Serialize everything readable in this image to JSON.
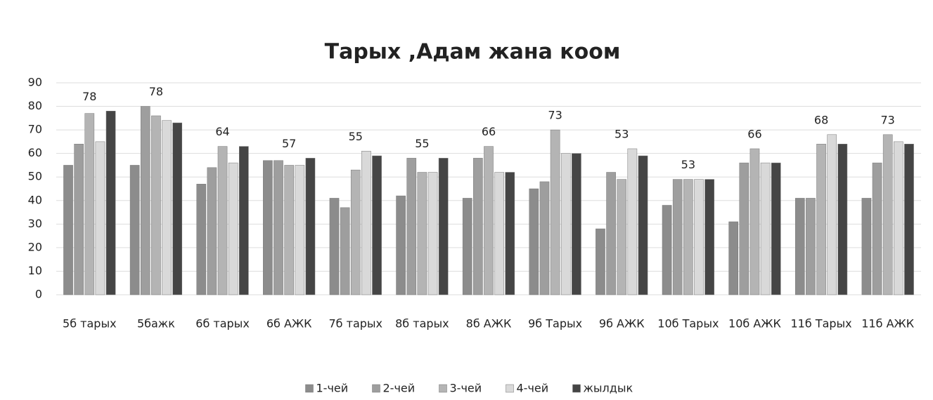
{
  "chart_data": {
    "type": "bar",
    "title": "Тарых ,Адам жана коом",
    "categories": [
      "5б тарых",
      "5бажк",
      "6б тарых",
      "6б АЖК",
      "7б тарых",
      "8б тарых",
      "8б АЖК",
      "9б Тарых",
      "9б АЖК",
      "10б Тарых",
      "10б  АЖК",
      "11б Тарых",
      "11б  АЖК"
    ],
    "series": [
      {
        "name": "1-чей",
        "color": "#8c8c8c",
        "values": [
          55,
          55,
          47,
          57,
          41,
          42,
          41,
          45,
          28,
          38,
          31,
          41,
          41
        ]
      },
      {
        "name": "2-чей",
        "color": "#9e9e9e",
        "values": [
          64,
          80,
          54,
          57,
          37,
          58,
          58,
          48,
          52,
          49,
          56,
          41,
          56
        ]
      },
      {
        "name": "3-чей",
        "color": "#b4b4b4",
        "values": [
          77,
          76,
          63,
          55,
          53,
          52,
          63,
          70,
          49,
          49,
          62,
          64,
          68
        ]
      },
      {
        "name": "4-чей",
        "color": "#d9d9d9",
        "values": [
          65,
          74,
          56,
          55,
          61,
          52,
          52,
          60,
          62,
          49,
          56,
          68,
          65
        ]
      },
      {
        "name": "жылдык",
        "color": "#454545",
        "values": [
          78,
          73,
          63,
          58,
          59,
          58,
          52,
          60,
          59,
          49,
          56,
          64,
          64
        ]
      }
    ],
    "group_labels": [
      78,
      78,
      64,
      57,
      55,
      55,
      66,
      73,
      53,
      53,
      66,
      68,
      73
    ],
    "ylim": [
      0,
      90
    ],
    "yticks": [
      0,
      10,
      20,
      30,
      40,
      50,
      60,
      70,
      80,
      90
    ],
    "grid": true,
    "legend": "bottom"
  }
}
